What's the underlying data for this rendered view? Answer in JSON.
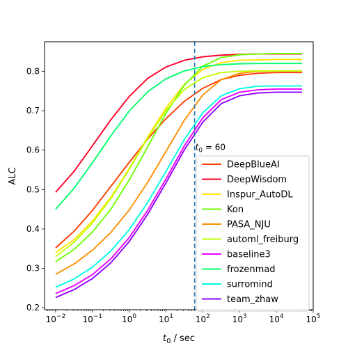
{
  "chart_data": {
    "type": "line",
    "xscale": "log",
    "xlim": [
      0.005,
      100000
    ],
    "ylim": [
      0.195,
      0.875
    ],
    "xlabel_var": "t",
    "xlabel_sub": "0",
    "xlabel_rest": " / sec",
    "ylabel": "ALC",
    "x_ticks": [
      {
        "value": 0.01,
        "base": "10",
        "exp": "−2"
      },
      {
        "value": 0.1,
        "base": "10",
        "exp": "−1"
      },
      {
        "value": 1,
        "base": "10",
        "exp": "0"
      },
      {
        "value": 10,
        "base": "10",
        "exp": "1"
      },
      {
        "value": 100,
        "base": "10",
        "exp": "2"
      },
      {
        "value": 1000,
        "base": "10",
        "exp": "3"
      },
      {
        "value": 10000,
        "base": "10",
        "exp": "4"
      },
      {
        "value": 100000,
        "base": "10",
        "exp": "5"
      }
    ],
    "y_ticks": [
      {
        "value": 0.2,
        "label": "0.2"
      },
      {
        "value": 0.3,
        "label": "0.3"
      },
      {
        "value": 0.4,
        "label": "0.4"
      },
      {
        "value": 0.5,
        "label": "0.5"
      },
      {
        "value": 0.6,
        "label": "0.6"
      },
      {
        "value": 0.7,
        "label": "0.7"
      },
      {
        "value": 0.8,
        "label": "0.8"
      }
    ],
    "vline": {
      "x": 60,
      "color": "#1f77b4",
      "label_var": "t",
      "label_sub": "0",
      "label_rest": " = 60"
    },
    "x": [
      0.01,
      0.0316,
      0.1,
      0.316,
      1,
      3.16,
      10,
      31.6,
      100,
      316,
      1000,
      3160,
      10000,
      50000
    ],
    "series": [
      {
        "name": "DeepBlueAI",
        "color": "#ff3a00",
        "values": [
          0.352,
          0.394,
          0.447,
          0.508,
          0.569,
          0.628,
          0.68,
          0.724,
          0.757,
          0.779,
          0.79,
          0.795,
          0.797,
          0.797
        ]
      },
      {
        "name": "DeepWisdom",
        "color": "#ff0029",
        "values": [
          0.493,
          0.546,
          0.611,
          0.677,
          0.736,
          0.782,
          0.811,
          0.828,
          0.837,
          0.841,
          0.843,
          0.844,
          0.844,
          0.844
        ]
      },
      {
        "name": "Inspur_AutoDL",
        "color": "#ffe500",
        "values": [
          0.34,
          0.373,
          0.42,
          0.48,
          0.553,
          0.633,
          0.707,
          0.767,
          0.805,
          0.822,
          0.828,
          0.829,
          0.83,
          0.83
        ]
      },
      {
        "name": "Kon",
        "color": "#6bff00",
        "values": [
          0.317,
          0.348,
          0.392,
          0.45,
          0.524,
          0.608,
          0.694,
          0.765,
          0.813,
          0.835,
          0.842,
          0.844,
          0.845,
          0.845
        ]
      },
      {
        "name": "PASA_NJU",
        "color": "#ff8f00",
        "values": [
          0.285,
          0.311,
          0.346,
          0.391,
          0.448,
          0.518,
          0.597,
          0.676,
          0.74,
          0.779,
          0.795,
          0.8,
          0.801,
          0.801
        ]
      },
      {
        "name": "automl_freiburg",
        "color": "#c0ff00",
        "values": [
          0.33,
          0.366,
          0.415,
          0.477,
          0.551,
          0.63,
          0.701,
          0.754,
          0.784,
          0.797,
          0.8,
          0.801,
          0.801,
          0.801
        ]
      },
      {
        "name": "baseline3",
        "color": "#ea00ff",
        "values": [
          0.236,
          0.256,
          0.284,
          0.324,
          0.378,
          0.447,
          0.527,
          0.611,
          0.682,
          0.728,
          0.747,
          0.753,
          0.755,
          0.755
        ]
      },
      {
        "name": "frozenmad",
        "color": "#00ff6b",
        "values": [
          0.45,
          0.503,
          0.568,
          0.636,
          0.699,
          0.748,
          0.781,
          0.801,
          0.812,
          0.817,
          0.819,
          0.82,
          0.82,
          0.82
        ]
      },
      {
        "name": "surromind",
        "color": "#00ffe5",
        "values": [
          0.252,
          0.273,
          0.303,
          0.344,
          0.398,
          0.467,
          0.546,
          0.627,
          0.695,
          0.738,
          0.756,
          0.762,
          0.763,
          0.763
        ]
      },
      {
        "name": "team_zhaw",
        "color": "#8f00ff",
        "values": [
          0.226,
          0.246,
          0.274,
          0.314,
          0.368,
          0.437,
          0.517,
          0.601,
          0.671,
          0.718,
          0.738,
          0.745,
          0.747,
          0.747
        ]
      }
    ],
    "legend": {
      "placement": "lower-right"
    }
  }
}
